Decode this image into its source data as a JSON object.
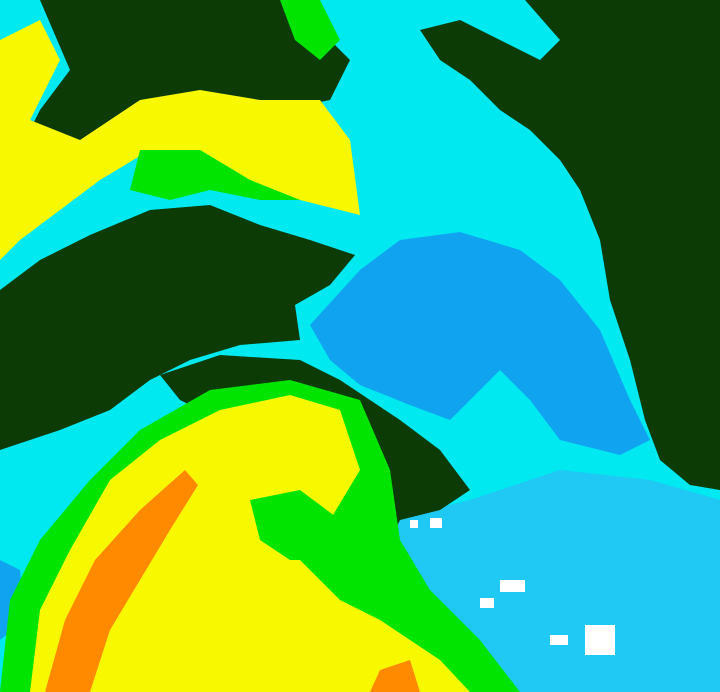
{
  "map": {
    "palette": {
      "dark_green": "#0c3b06",
      "cyan": "#00e8f0",
      "blue": "#10a4f0",
      "light_blue": "#20c8f4",
      "yellow": "#f8f800",
      "green": "#00e400",
      "orange": "#ff8a00",
      "white": "#ffffff"
    }
  }
}
